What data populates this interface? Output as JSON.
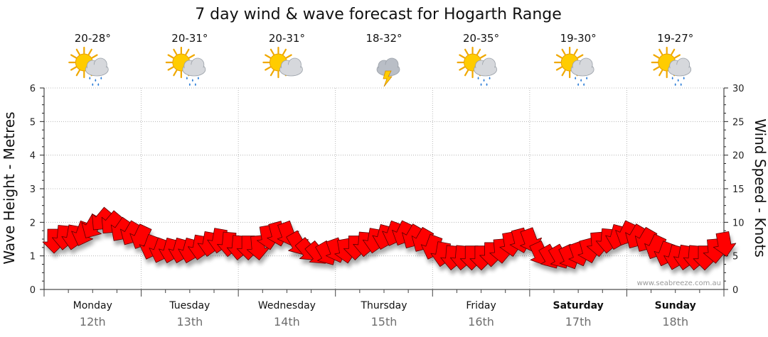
{
  "chart_data": {
    "type": "line",
    "title": "7 day wind & wave forecast for Hogarth Range",
    "ylabel_left": "Wave Height - Metres",
    "ylabel_right": "Wind Speed - Knots",
    "ylim_left": [
      0,
      6
    ],
    "ylim_right": [
      0,
      30
    ],
    "yticks_left": [
      "0",
      "1",
      "2",
      "3",
      "4",
      "5",
      "6"
    ],
    "yticks_right": [
      "0",
      "5",
      "10",
      "15",
      "20",
      "25",
      "30"
    ],
    "grid": true,
    "days": [
      {
        "day": "Monday",
        "date": "12th",
        "temp": "20-28°",
        "icon": "sun-cloud-rain-icon",
        "bold": false
      },
      {
        "day": "Tuesday",
        "date": "13th",
        "temp": "20-31°",
        "icon": "sun-cloud-rain-icon",
        "bold": false
      },
      {
        "day": "Wednesday",
        "date": "14th",
        "temp": "20-31°",
        "icon": "sun-cloud-icon",
        "bold": false
      },
      {
        "day": "Thursday",
        "date": "15th",
        "temp": "18-32°",
        "icon": "storm-cloud-icon",
        "bold": false
      },
      {
        "day": "Friday",
        "date": "16th",
        "temp": "20-35°",
        "icon": "sun-cloud-rain-icon",
        "bold": false
      },
      {
        "day": "Saturday",
        "date": "17th",
        "temp": "19-30°",
        "icon": "sun-cloud-rain-icon",
        "bold": true
      },
      {
        "day": "Sunday",
        "date": "18th",
        "temp": "19-27°",
        "icon": "sun-cloud-rain-icon",
        "bold": true
      }
    ],
    "series": [
      {
        "name": "Wind",
        "color": "#ff0000",
        "x": [
          0.0,
          0.1,
          0.2,
          0.3,
          0.4,
          0.5,
          0.6,
          0.7,
          0.8,
          0.9,
          1.0,
          1.1,
          1.2,
          1.3,
          1.4,
          1.5,
          1.6,
          1.7,
          1.8,
          1.9,
          2.0,
          2.1,
          2.2,
          2.3,
          2.4,
          2.5,
          2.6,
          2.7,
          2.8,
          2.9,
          3.0,
          3.1,
          3.2,
          3.3,
          3.4,
          3.5,
          3.6,
          3.7,
          3.8,
          3.9,
          4.0,
          4.1,
          4.2,
          4.3,
          4.4,
          4.5,
          4.6,
          4.7,
          4.8,
          4.9,
          5.0,
          5.1,
          5.2,
          5.3,
          5.4,
          5.5,
          5.6,
          5.7,
          5.8,
          5.9,
          6.0,
          6.1,
          6.2,
          6.3,
          6.4,
          6.5,
          6.6,
          6.7,
          6.8,
          6.9
        ],
        "speed_kn": [
          7.5,
          8,
          8,
          8.5,
          9.5,
          10.5,
          10,
          9,
          8.5,
          8,
          6.5,
          6,
          6,
          6,
          6,
          6.5,
          7,
          7.5,
          7,
          6.5,
          6.5,
          6.5,
          8,
          8.5,
          8.5,
          7,
          6,
          5.5,
          5.5,
          6,
          6,
          6.5,
          7,
          7.5,
          8,
          8.5,
          8.5,
          8,
          7.5,
          6.5,
          5.5,
          5,
          5,
          5,
          5,
          5.5,
          6,
          7,
          7.5,
          7.5,
          5.5,
          5,
          5,
          5,
          5.5,
          6,
          7,
          7.5,
          8,
          8.5,
          8,
          7.5,
          6.5,
          5.5,
          5,
          5,
          5,
          5,
          6,
          7
        ],
        "direction_deg": [
          180,
          185,
          190,
          200,
          210,
          220,
          220,
          215,
          210,
          205,
          200,
          200,
          195,
          195,
          195,
          190,
          190,
          190,
          185,
          185,
          180,
          175,
          170,
          165,
          160,
          150,
          140,
          140,
          150,
          160,
          170,
          180,
          185,
          190,
          195,
          200,
          205,
          210,
          210,
          200,
          190,
          185,
          185,
          180,
          180,
          180,
          175,
          170,
          165,
          160,
          155,
          150,
          150,
          155,
          160,
          165,
          175,
          185,
          195,
          205,
          210,
          210,
          205,
          200,
          195,
          190,
          185,
          180,
          175,
          170
        ]
      }
    ],
    "watermark": "www.seabreeze.com.au"
  }
}
